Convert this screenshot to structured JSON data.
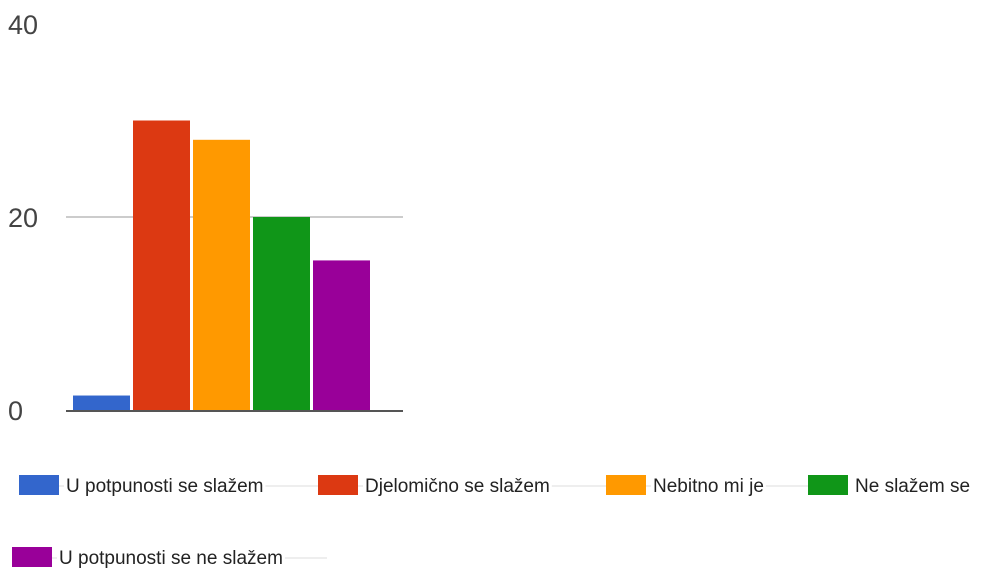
{
  "chart_data": {
    "type": "bar",
    "title": "",
    "xlabel": "",
    "ylabel": "",
    "ylim": [
      0,
      40
    ],
    "yticks": [
      "0",
      "20",
      "40"
    ],
    "grid": true,
    "legend_position": "bottom",
    "series": [
      {
        "name": "U potpunosti se slažem",
        "value": 1.5,
        "color": "#3366cc"
      },
      {
        "name": "Djelomično se slažem",
        "value": 30,
        "color": "#dc3912"
      },
      {
        "name": "Nebitno mi je",
        "value": 28,
        "color": "#ff9900"
      },
      {
        "name": "Ne slažem se",
        "value": 20,
        "color": "#109618"
      },
      {
        "name": "U potpunosti se ne slažem",
        "value": 15.5,
        "color": "#990099"
      }
    ]
  }
}
